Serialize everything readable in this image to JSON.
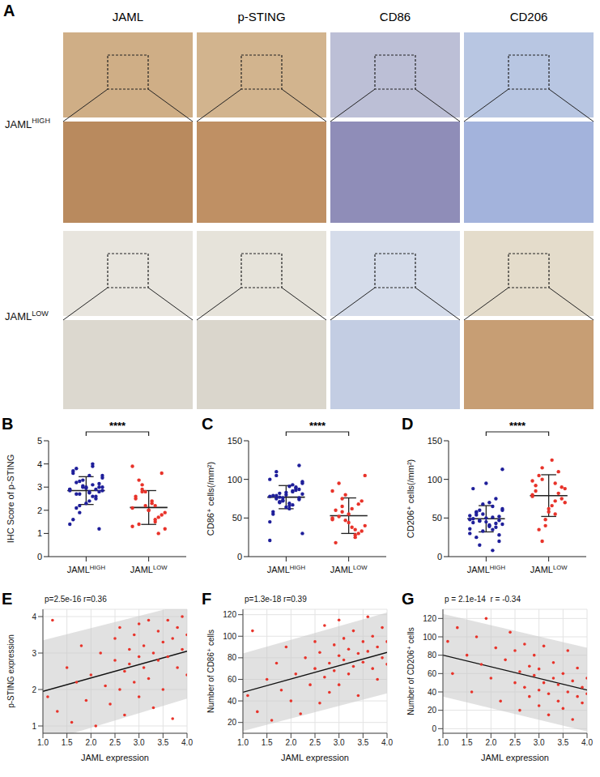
{
  "image_panel": {
    "panel": "A",
    "columns": [
      "JAML",
      "p-STING",
      "CD86",
      "CD206"
    ],
    "rows": [
      {
        "text": "JAML",
        "sup": "HIGH"
      },
      {
        "text": "JAML",
        "sup": "LOW"
      }
    ]
  },
  "chart_data": [
    {
      "panel": "B",
      "type": "dot",
      "categories": [
        {
          "text": "JAML",
          "sup": "HIGH"
        },
        {
          "text": "JAML",
          "sup": "LOW"
        }
      ],
      "y_label": "IHC Score of p-STING",
      "ylim": [
        0,
        5
      ],
      "yticks": [
        0,
        1,
        2,
        3,
        4,
        5
      ],
      "values": [
        [
          2.9,
          3.1,
          2.7,
          3.5,
          2.4,
          3.8,
          2.8,
          3.0,
          1.6,
          2.6,
          3.3,
          2.9,
          3.9,
          2.2,
          3.0,
          2.75,
          3.2,
          1.2,
          2.95,
          3.6,
          2.5,
          3.05,
          2.85,
          4.0,
          1.9,
          3.4,
          2.8,
          2.7,
          3.15,
          2.3,
          3.7,
          2.9,
          3.0,
          1.4,
          2.6,
          3.25,
          2.85,
          3.5,
          2.1,
          3.0
        ],
        [
          2.1,
          1.5,
          2.8,
          1.2,
          2.4,
          3.3,
          1.8,
          2.0,
          2.6,
          1.0,
          2.2,
          3.9,
          1.6,
          2.9,
          1.9,
          2.3,
          1.4,
          3.6,
          2.0,
          2.5,
          1.7,
          2.8,
          1.3,
          2.2,
          3.1
        ]
      ],
      "means": [
        2.85,
        2.12
      ],
      "sd": [
        0.6,
        0.73
      ],
      "colors": [
        "#1f1f9a",
        "#e8332a"
      ],
      "significance": "****"
    },
    {
      "panel": "C",
      "type": "dot",
      "categories": [
        {
          "text": "JAML",
          "sup": "HIGH"
        },
        {
          "text": "JAML",
          "sup": "LOW"
        }
      ],
      "y_label": "CD86⁺ cells(/mm²)",
      "ylim": [
        0,
        150
      ],
      "yticks": [
        0,
        50,
        100,
        150
      ],
      "values": [
        [
          78,
          85,
          70,
          95,
          62,
          110,
          76,
          80,
          55,
          88,
          73,
          100,
          67,
          82,
          30,
          91,
          75,
          118,
          64,
          79,
          86,
          72,
          45,
          93,
          77,
          81,
          69,
          105,
          74,
          83,
          58,
          90,
          76,
          21,
          84,
          71,
          97,
          66,
          79,
          87
        ],
        [
          50,
          25,
          75,
          40,
          62,
          95,
          33,
          55,
          18,
          68,
          47,
          85,
          28,
          58,
          105,
          38,
          52,
          72,
          44,
          60,
          30,
          80,
          48,
          35,
          65
        ]
      ],
      "means": [
        77,
        53
      ],
      "sd": [
        15,
        23
      ],
      "colors": [
        "#1f1f9a",
        "#e8332a"
      ],
      "significance": "****"
    },
    {
      "panel": "D",
      "type": "dot",
      "categories": [
        {
          "text": "JAML",
          "sup": "HIGH"
        },
        {
          "text": "JAML",
          "sup": "LOW"
        }
      ],
      "y_label": "CD206⁺ cells(/mm²)",
      "ylim": [
        0,
        150
      ],
      "yticks": [
        0,
        50,
        100,
        150
      ],
      "values": [
        [
          48,
          35,
          60,
          42,
          70,
          25,
          52,
          45,
          88,
          38,
          55,
          30,
          65,
          47,
          113,
          40,
          58,
          20,
          50,
          44,
          75,
          33,
          53,
          8,
          46,
          62,
          39,
          57,
          28,
          95,
          49,
          43,
          68,
          36,
          51,
          15,
          60,
          41,
          54,
          47
        ],
        [
          80,
          55,
          100,
          70,
          125,
          35,
          90,
          62,
          85,
          110,
          48,
          78,
          95,
          20,
          88,
          66,
          105,
          75,
          58,
          92,
          82,
          40,
          98,
          72,
          115
        ]
      ],
      "means": [
        49,
        79
      ],
      "sd": [
        17,
        27
      ],
      "colors": [
        "#1f1f9a",
        "#e8332a"
      ],
      "significance": "****"
    },
    {
      "panel": "E",
      "type": "scatter",
      "x_label": "JAML expression",
      "y_label": "p-STING expression",
      "annotation": "p=2.5e-16 r=0.36",
      "color": "#e8332a",
      "grid": true,
      "xlim": [
        1,
        4
      ],
      "xticks": [
        {
          "value": 1,
          "label": "1.0"
        },
        {
          "value": 1.5,
          "label": "1.5"
        },
        {
          "value": 2,
          "label": "2.0"
        },
        {
          "value": 2.5,
          "label": "2.5"
        },
        {
          "value": 3,
          "label": "3.0"
        },
        {
          "value": 3.5,
          "label": "3.5"
        },
        {
          "value": 4,
          "label": "4.0"
        }
      ],
      "ylim": [
        0.8,
        4.2
      ],
      "yticks": [
        1,
        2,
        3,
        4
      ],
      "x": [
        1.1,
        1.2,
        1.3,
        1.5,
        1.6,
        1.7,
        1.8,
        1.9,
        2.0,
        2.1,
        2.2,
        2.3,
        2.4,
        2.5,
        2.5,
        2.6,
        2.6,
        2.7,
        2.7,
        2.8,
        2.8,
        2.9,
        2.9,
        3.0,
        3.0,
        3.0,
        3.1,
        3.1,
        3.2,
        3.2,
        3.3,
        3.3,
        3.4,
        3.4,
        3.5,
        3.5,
        3.6,
        3.6,
        3.7,
        3.7,
        3.8,
        3.8,
        3.9,
        3.9,
        4.0,
        4.0
      ],
      "values": [
        1.8,
        3.9,
        1.4,
        2.6,
        1.1,
        2.2,
        3.2,
        1.7,
        2.4,
        1.0,
        3.0,
        2.1,
        1.6,
        2.8,
        3.4,
        2.0,
        3.7,
        2.5,
        1.3,
        3.1,
        2.7,
        3.5,
        2.2,
        2.9,
        3.8,
        1.8,
        3.2,
        2.6,
        3.9,
        2.3,
        3.0,
        1.5,
        3.6,
        2.8,
        3.3,
        2.0,
        3.9,
        2.9,
        3.4,
        1.2,
        3.7,
        2.6,
        3.1,
        4.0,
        3.5,
        2.4
      ],
      "fit": {
        "x": [
          1,
          4
        ],
        "values": [
          1.95,
          3.05
        ]
      },
      "band": {
        "x": [
          1,
          4
        ],
        "lower": [
          0.55,
          1.75
        ],
        "upper": [
          3.35,
          4.35
        ]
      }
    },
    {
      "panel": "F",
      "type": "scatter",
      "x_label": "JAML expression",
      "y_label": "Number of CD86⁺ cells",
      "annotation": "p=1.3e-18 r=0.39",
      "color": "#e8332a",
      "grid": true,
      "xlim": [
        1,
        4
      ],
      "xticks": [
        {
          "value": 1,
          "label": "1.0"
        },
        {
          "value": 1.5,
          "label": "1.5"
        },
        {
          "value": 2,
          "label": "2.0"
        },
        {
          "value": 2.5,
          "label": "2.5"
        },
        {
          "value": 3,
          "label": "3.0"
        },
        {
          "value": 3.5,
          "label": "3.5"
        },
        {
          "value": 4,
          "label": "4.0"
        }
      ],
      "ylim": [
        10,
        125
      ],
      "yticks": [
        20,
        40,
        60,
        80,
        100,
        120
      ],
      "x": [
        1.1,
        1.2,
        1.3,
        1.5,
        1.6,
        1.7,
        1.8,
        1.9,
        2.0,
        2.1,
        2.2,
        2.3,
        2.4,
        2.5,
        2.5,
        2.6,
        2.6,
        2.7,
        2.7,
        2.8,
        2.8,
        2.9,
        2.9,
        3.0,
        3.0,
        3.0,
        3.1,
        3.1,
        3.2,
        3.2,
        3.3,
        3.3,
        3.4,
        3.4,
        3.5,
        3.5,
        3.6,
        3.6,
        3.7,
        3.7,
        3.8,
        3.8,
        3.9,
        3.9,
        4.0,
        4.0
      ],
      "values": [
        45,
        105,
        30,
        60,
        22,
        75,
        50,
        90,
        40,
        65,
        28,
        80,
        55,
        95,
        70,
        38,
        85,
        62,
        110,
        75,
        48,
        92,
        68,
        82,
        115,
        55,
        78,
        98,
        65,
        88,
        105,
        72,
        84,
        45,
        95,
        76,
        118,
        86,
        70,
        100,
        90,
        60,
        108,
        80,
        95,
        74
      ],
      "fit": {
        "x": [
          1,
          4
        ],
        "values": [
          48,
          85
        ]
      },
      "band": {
        "x": [
          1,
          4
        ],
        "lower": [
          12,
          47
        ],
        "upper": [
          84,
          122
        ]
      }
    },
    {
      "panel": "G",
      "type": "scatter",
      "x_label": "JAML expression",
      "y_label": "Number of CD206⁺ cells",
      "annotation": "p = 2.1e-14  r = -0.34",
      "color": "#e8332a",
      "grid": true,
      "xlim": [
        1,
        4
      ],
      "xticks": [
        {
          "value": 1,
          "label": "1.0"
        },
        {
          "value": 1.5,
          "label": "1.5"
        },
        {
          "value": 2,
          "label": "2.0"
        },
        {
          "value": 2.5,
          "label": "2.5"
        },
        {
          "value": 3,
          "label": "3.0"
        },
        {
          "value": 3.5,
          "label": "3.5"
        },
        {
          "value": 4,
          "label": "4.0"
        }
      ],
      "ylim": [
        -5,
        130
      ],
      "yticks": [
        0,
        20,
        40,
        60,
        80,
        100,
        120
      ],
      "x": [
        1.1,
        1.2,
        1.3,
        1.5,
        1.6,
        1.7,
        1.8,
        1.9,
        2.0,
        2.1,
        2.2,
        2.3,
        2.4,
        2.5,
        2.5,
        2.6,
        2.6,
        2.7,
        2.7,
        2.8,
        2.8,
        2.9,
        2.9,
        3.0,
        3.0,
        3.0,
        3.1,
        3.1,
        3.2,
        3.2,
        3.3,
        3.3,
        3.4,
        3.4,
        3.5,
        3.5,
        3.6,
        3.6,
        3.7,
        3.7,
        3.8,
        3.8,
        3.9,
        3.9,
        4.0,
        4.0
      ],
      "values": [
        95,
        60,
        110,
        80,
        40,
        100,
        70,
        120,
        55,
        88,
        30,
        75,
        105,
        50,
        85,
        62,
        20,
        92,
        45,
        68,
        35,
        58,
        80,
        42,
        25,
        65,
        50,
        90,
        38,
        15,
        55,
        72,
        30,
        48,
        60,
        22,
        40,
        85,
        52,
        10,
        35,
        66,
        45,
        28,
        55,
        38
      ],
      "fit": {
        "x": [
          1,
          4
        ],
        "values": [
          80,
          42
        ]
      },
      "band": {
        "x": [
          1,
          4
        ],
        "lower": [
          35,
          -3
        ],
        "upper": [
          125,
          88
        ]
      }
    }
  ]
}
